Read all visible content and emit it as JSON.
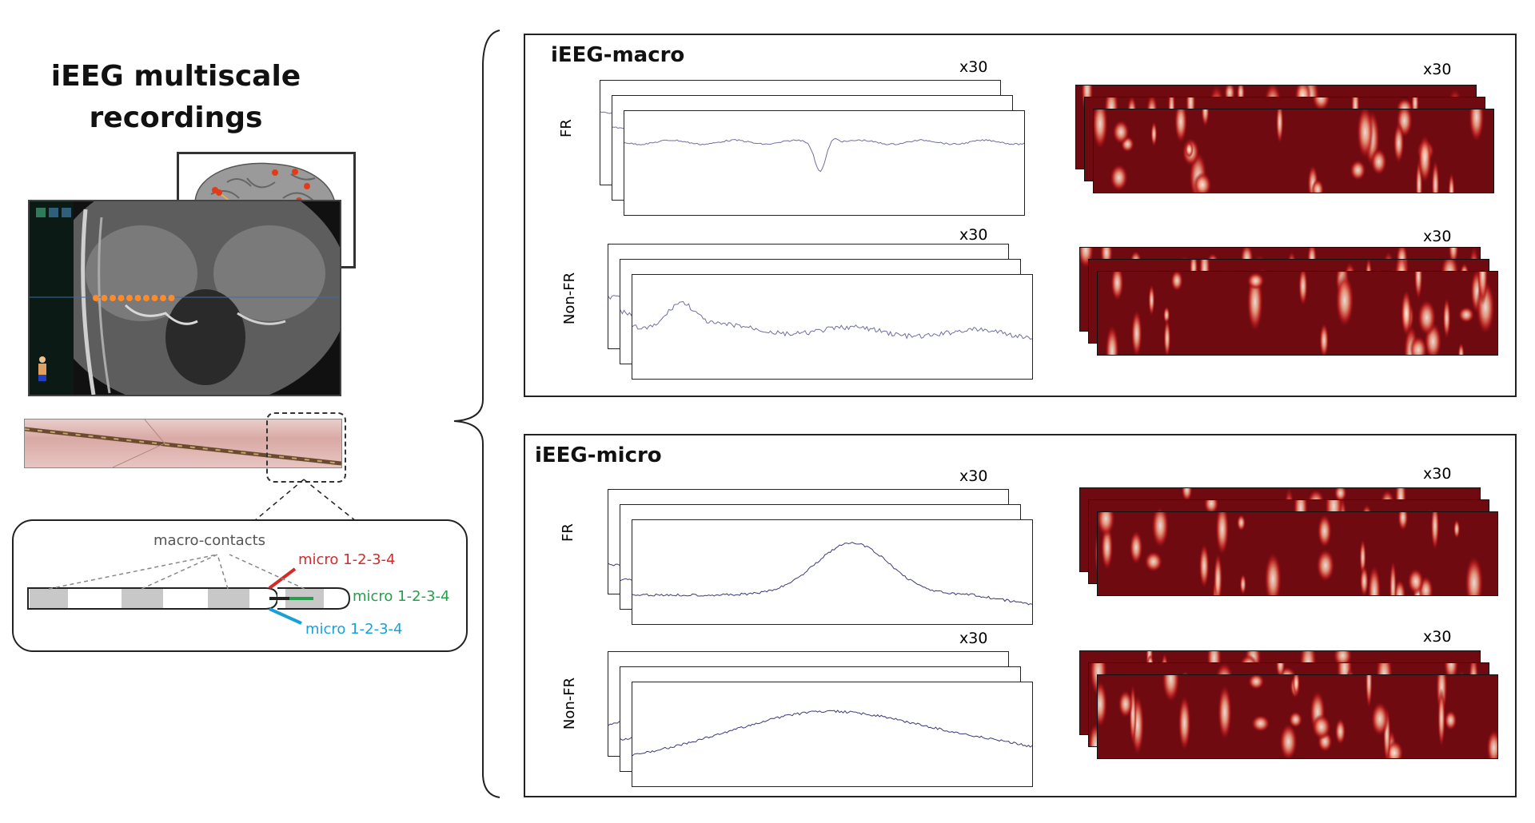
{
  "title": "iEEG multiscale recordings",
  "electrode": {
    "macro_label": "macro-contacts",
    "micro_red": "micro 1-2-3-4",
    "micro_green": "micro 1-2-3-4",
    "micro_blue": "micro 1-2-3-4",
    "colors": {
      "red": "#d42a2a",
      "green": "#22a04a",
      "blue": "#1aa0d8",
      "contact": "#c8c8c8"
    }
  },
  "panels": [
    {
      "title": "iEEG-macro",
      "rows": [
        {
          "label": "FR",
          "lfp_mult": "x30",
          "tf_mult": "x30"
        },
        {
          "label": "Non-FR",
          "lfp_mult": "x30",
          "tf_mult": "x30"
        }
      ]
    },
    {
      "title": "iEEG-micro",
      "rows": [
        {
          "label": "FR",
          "lfp_mult": "x30",
          "tf_mult": "x30"
        },
        {
          "label": "Non-FR",
          "lfp_mult": "x30",
          "tf_mult": "x30"
        }
      ]
    }
  ],
  "colors": {
    "heatmap_bg": "#6e0a10",
    "trace": "#6f6fa0",
    "micro_trace": "#3a3a78",
    "mri_dots": "#ff8a2a",
    "brain_dots": "#e23b1a"
  }
}
